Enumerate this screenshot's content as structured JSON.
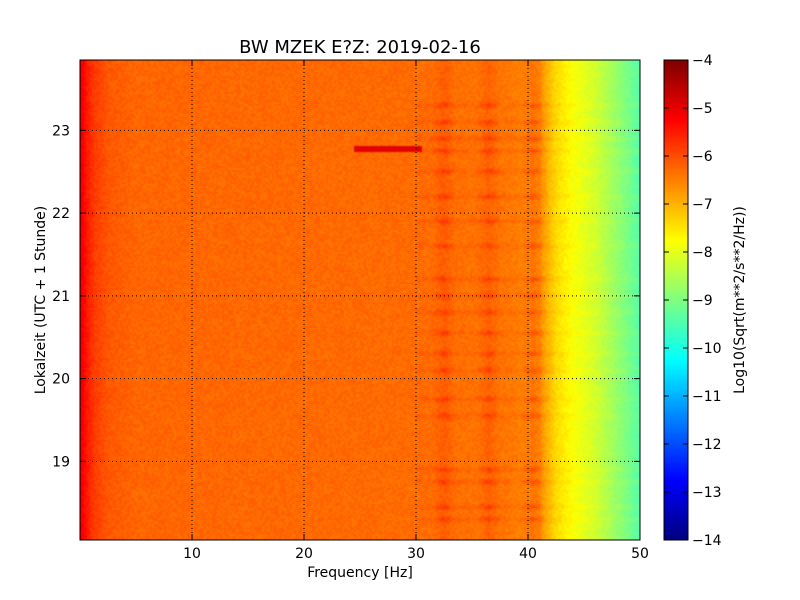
{
  "chart_data": {
    "type": "heatmap",
    "title": "BW MZEK E?Z: 2019-02-16",
    "xlabel": "Frequency [Hz]",
    "ylabel": "Lokalzeit (UTC + 1 Stunde)",
    "xlim": [
      0,
      50
    ],
    "ylim": [
      23.85,
      18.05
    ],
    "x_ticks": [
      10,
      20,
      30,
      40,
      50
    ],
    "x_tick_labels": [
      "10",
      "20",
      "30",
      "40",
      "50"
    ],
    "y_ticks": [
      19,
      20,
      21,
      22,
      23
    ],
    "y_tick_labels": [
      "19",
      "20",
      "21",
      "22",
      "23"
    ],
    "grid": true,
    "colorbar": {
      "label": "Log10(Sqrt(m**2/s**2/Hz))",
      "range": [
        -14,
        -4
      ],
      "colormap": "jet",
      "ticks": [
        -4,
        -5,
        -6,
        -7,
        -8,
        -9,
        -10,
        -11,
        -12,
        -13,
        -14
      ],
      "tick_labels": [
        "−4",
        "−5",
        "−6",
        "−7",
        "−8",
        "−9",
        "−10",
        "−11",
        "−12",
        "−13",
        "−14"
      ]
    },
    "spectrum_profile": {
      "frequency_hz": [
        0,
        0.5,
        1.2,
        2.5,
        5,
        30,
        38,
        41,
        42.5,
        44,
        46,
        48,
        50
      ],
      "log_psd": [
        -5.0,
        -5.4,
        -5.8,
        -6.1,
        -6.25,
        -6.3,
        -6.4,
        -6.6,
        -7.4,
        -7.8,
        -8.2,
        -8.8,
        -9.4
      ]
    },
    "features": {
      "narrowband_lines_hz": [
        32.5,
        36.5,
        40.5
      ],
      "burst_hours": [
        18.3,
        18.45,
        18.75,
        18.9,
        19.55,
        19.75,
        20.1,
        20.3,
        20.55,
        20.8,
        21.0,
        21.2,
        21.6,
        21.9,
        22.2,
        22.5,
        22.75,
        22.9,
        23.1,
        23.3
      ],
      "transient": {
        "hour": 22.78,
        "freq_start_hz": 24.5,
        "freq_end_hz": 30.5,
        "log_psd": -5.0
      }
    }
  }
}
